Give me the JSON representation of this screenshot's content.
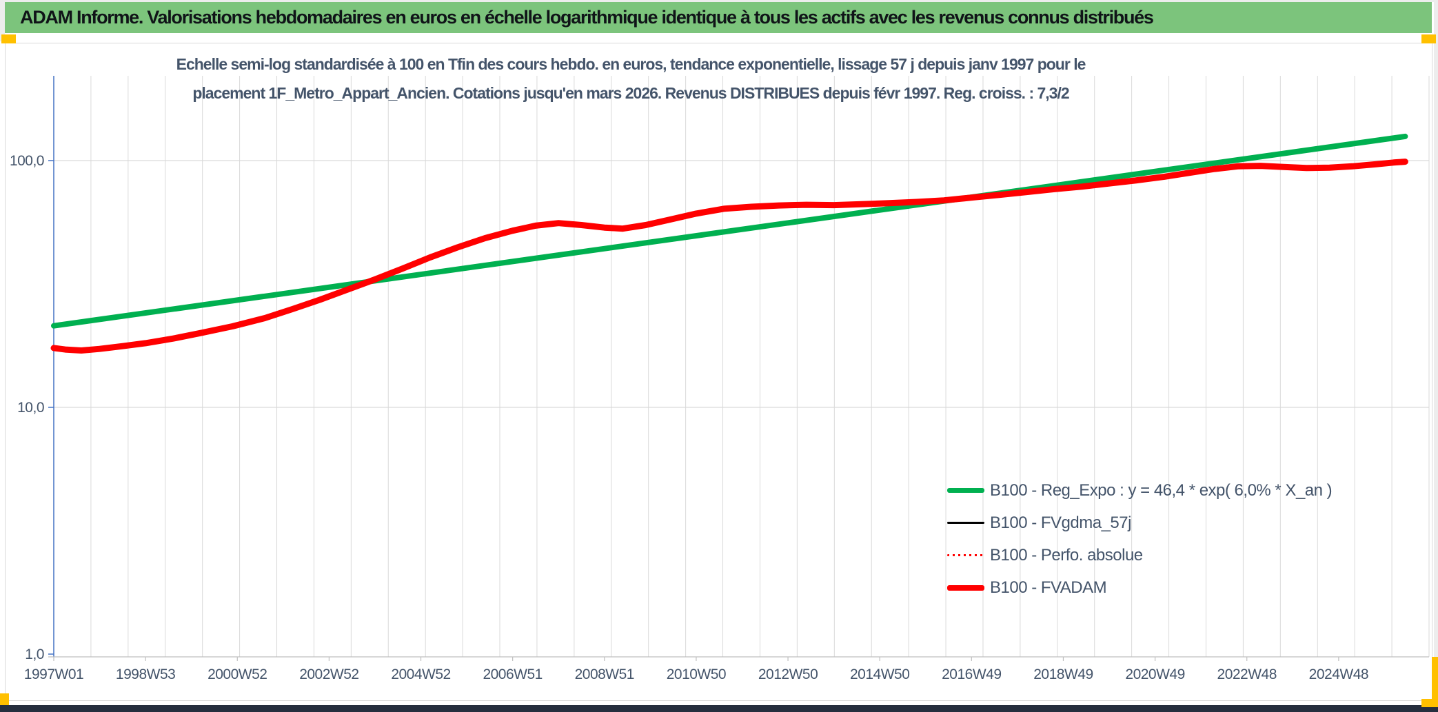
{
  "banner": {
    "title": "ADAM Informe. Valorisations hebdomadaires en euros en échelle logarithmique identique à tous les actifs avec les revenus connus distribués"
  },
  "colors": {
    "banner_bg": "#7CC47C",
    "banner_text": "#101418",
    "text": "#44546A",
    "grid": "#D9D9D9",
    "axis_y": "#4472C4",
    "axis_x": "#BFBFBF",
    "gold": "#FFC000",
    "bottom_bar": "#252E3E",
    "card_border": "#D9D9D9",
    "green_series": "#00B050",
    "red_series": "#FF0000",
    "black_series": "#000000"
  },
  "chart_data": {
    "type": "line",
    "y_scale": "log10",
    "grid": "on",
    "legend_position": "inside-right-bottom",
    "title_lines": [
      "Echelle semi-log standardisée à 100 en Tfin des cours hebdo. en euros, tendance exponentielle, lissage 57 j depuis janv 1997 pour le",
      "placement 1F_Metro_Appart_Ancien. Cotations jusqu'en mars 2026. Revenus DISTRIBUES depuis févr 1997. Reg. croiss. : 7,3/2"
    ],
    "x_domain": [
      1997.0,
      2026.97
    ],
    "ylim": [
      1,
      200
    ],
    "y_ticks": [
      {
        "v": 1,
        "label": "1,0",
        "grid": false
      },
      {
        "v": 10,
        "label": "10,0",
        "grid": true
      },
      {
        "v": 100,
        "label": "100,0",
        "grid": true
      }
    ],
    "x_ticks": [
      {
        "t": 1997.0,
        "label": "1997W01"
      },
      {
        "t": 1999.0,
        "label": "1998W53"
      },
      {
        "t": 2001.0,
        "label": "2000W52"
      },
      {
        "t": 2003.0,
        "label": "2002W52"
      },
      {
        "t": 2005.0,
        "label": "2004W52"
      },
      {
        "t": 2007.0,
        "label": "2006W51"
      },
      {
        "t": 2009.0,
        "label": "2008W51"
      },
      {
        "t": 2011.0,
        "label": "2010W50"
      },
      {
        "t": 2013.0,
        "label": "2012W50"
      },
      {
        "t": 2015.0,
        "label": "2014W50"
      },
      {
        "t": 2017.0,
        "label": "2016W49"
      },
      {
        "t": 2019.0,
        "label": "2018W49"
      },
      {
        "t": 2021.0,
        "label": "2020W49"
      },
      {
        "t": 2023.0,
        "label": "2022W48"
      },
      {
        "t": 2025.0,
        "label": "2024W48"
      }
    ],
    "series": [
      {
        "name": "B100 - Reg_Expo : y = 46,4 * exp( 6,0% * X_an )",
        "color": "#00B050",
        "width": 8,
        "regression": {
          "a": 46.4,
          "rate_pct_per_year": 6.0,
          "x_var": "X_an"
        },
        "points": [
          [
            1997.0,
            21.4
          ],
          [
            2026.45,
            125.3
          ]
        ]
      },
      {
        "name": "B100 - FVgdma_57j",
        "color": "#000000",
        "width": 3,
        "points_from": 3
      },
      {
        "name": "B100 - Perfo. absolue",
        "color": "#FF0000",
        "width": 2.5,
        "dash": "3 5",
        "points_from": 3
      },
      {
        "name": "B100 - FVADAM",
        "color": "#FF0000",
        "width": 9,
        "points": [
          [
            1997.0,
            17.4
          ],
          [
            1997.25,
            17.15
          ],
          [
            1997.6,
            17.0
          ],
          [
            1998.0,
            17.25
          ],
          [
            1998.5,
            17.7
          ],
          [
            1999.0,
            18.2
          ],
          [
            1999.6,
            19.0
          ],
          [
            2000.2,
            20.0
          ],
          [
            2000.9,
            21.3
          ],
          [
            2001.6,
            23.0
          ],
          [
            2002.2,
            25.0
          ],
          [
            2002.8,
            27.3
          ],
          [
            2003.4,
            30.0
          ],
          [
            2004.0,
            33.0
          ],
          [
            2004.6,
            36.5
          ],
          [
            2005.2,
            40.5
          ],
          [
            2005.8,
            44.5
          ],
          [
            2006.4,
            48.5
          ],
          [
            2007.0,
            52.0
          ],
          [
            2007.5,
            54.5
          ],
          [
            2008.0,
            55.8
          ],
          [
            2008.5,
            54.8
          ],
          [
            2009.0,
            53.5
          ],
          [
            2009.4,
            53.0
          ],
          [
            2009.9,
            54.8
          ],
          [
            2010.4,
            57.5
          ],
          [
            2011.0,
            61.0
          ],
          [
            2011.6,
            63.8
          ],
          [
            2012.2,
            65.0
          ],
          [
            2012.8,
            65.8
          ],
          [
            2013.4,
            66.2
          ],
          [
            2014.0,
            66.0
          ],
          [
            2014.6,
            66.6
          ],
          [
            2015.2,
            67.2
          ],
          [
            2015.8,
            68.0
          ],
          [
            2016.4,
            69.0
          ],
          [
            2017.0,
            70.8
          ],
          [
            2017.6,
            72.6
          ],
          [
            2018.2,
            74.6
          ],
          [
            2018.8,
            76.6
          ],
          [
            2019.4,
            78.4
          ],
          [
            2020.0,
            80.8
          ],
          [
            2020.6,
            83.2
          ],
          [
            2021.2,
            86.0
          ],
          [
            2021.8,
            89.5
          ],
          [
            2022.3,
            92.5
          ],
          [
            2022.8,
            94.8
          ],
          [
            2023.3,
            95.2
          ],
          [
            2023.8,
            94.2
          ],
          [
            2024.3,
            93.3
          ],
          [
            2024.8,
            93.6
          ],
          [
            2025.3,
            94.8
          ],
          [
            2025.8,
            96.6
          ],
          [
            2026.2,
            98.2
          ],
          [
            2026.45,
            99.0
          ]
        ]
      }
    ]
  }
}
